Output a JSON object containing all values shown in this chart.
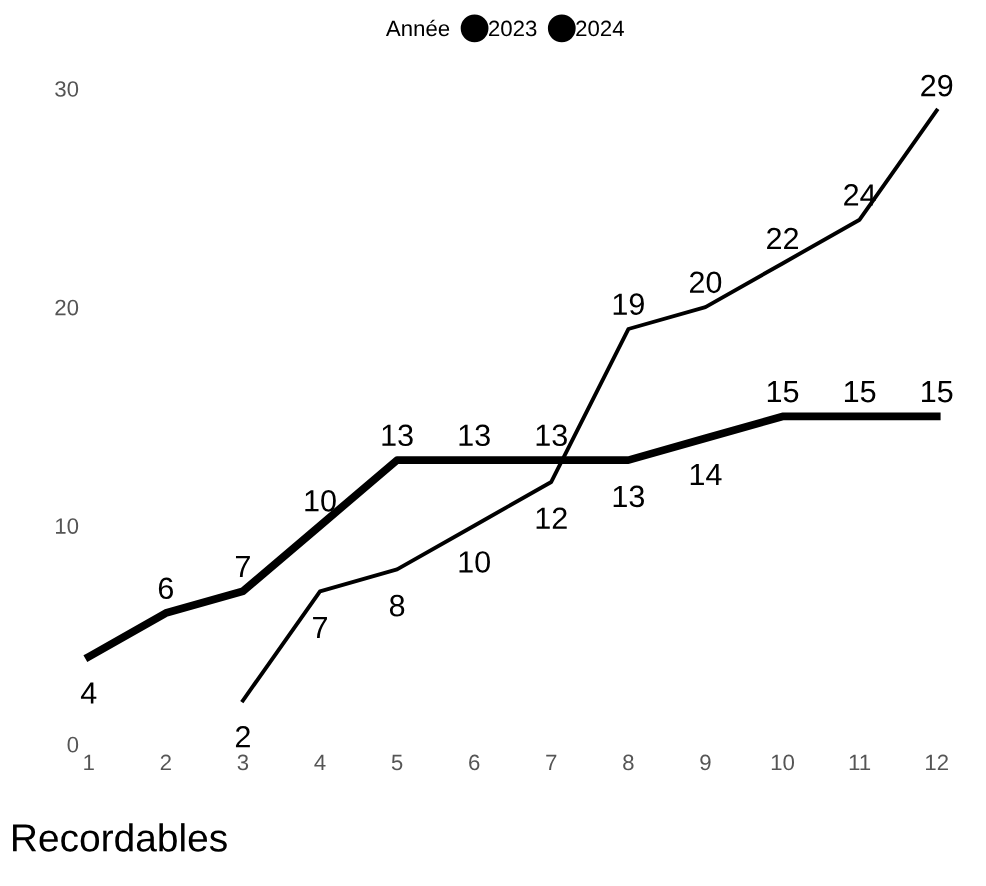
{
  "chart_data": {
    "type": "line",
    "title": "Recordables",
    "legend_title": "Année",
    "legend": "top",
    "x": [
      1,
      2,
      3,
      4,
      5,
      6,
      7,
      8,
      9,
      10,
      11,
      12
    ],
    "series": [
      {
        "name": "2023",
        "color": "#000000",
        "values": [
          4,
          6,
          7,
          10,
          13,
          13,
          13,
          13,
          14,
          15,
          15,
          15
        ]
      },
      {
        "name": "2024",
        "color": "#000000",
        "values": [
          null,
          null,
          2,
          7,
          8,
          10,
          12,
          19,
          20,
          22,
          24,
          29
        ]
      }
    ],
    "xlim": [
      1,
      12
    ],
    "xticks": [
      1,
      2,
      3,
      4,
      5,
      6,
      7,
      8,
      9,
      10,
      11,
      12
    ],
    "ylim": [
      0,
      30
    ],
    "yticks": [
      0,
      10,
      20,
      30
    ],
    "grid": false,
    "data_labels": true,
    "marker": "none",
    "line_style": "solid"
  }
}
